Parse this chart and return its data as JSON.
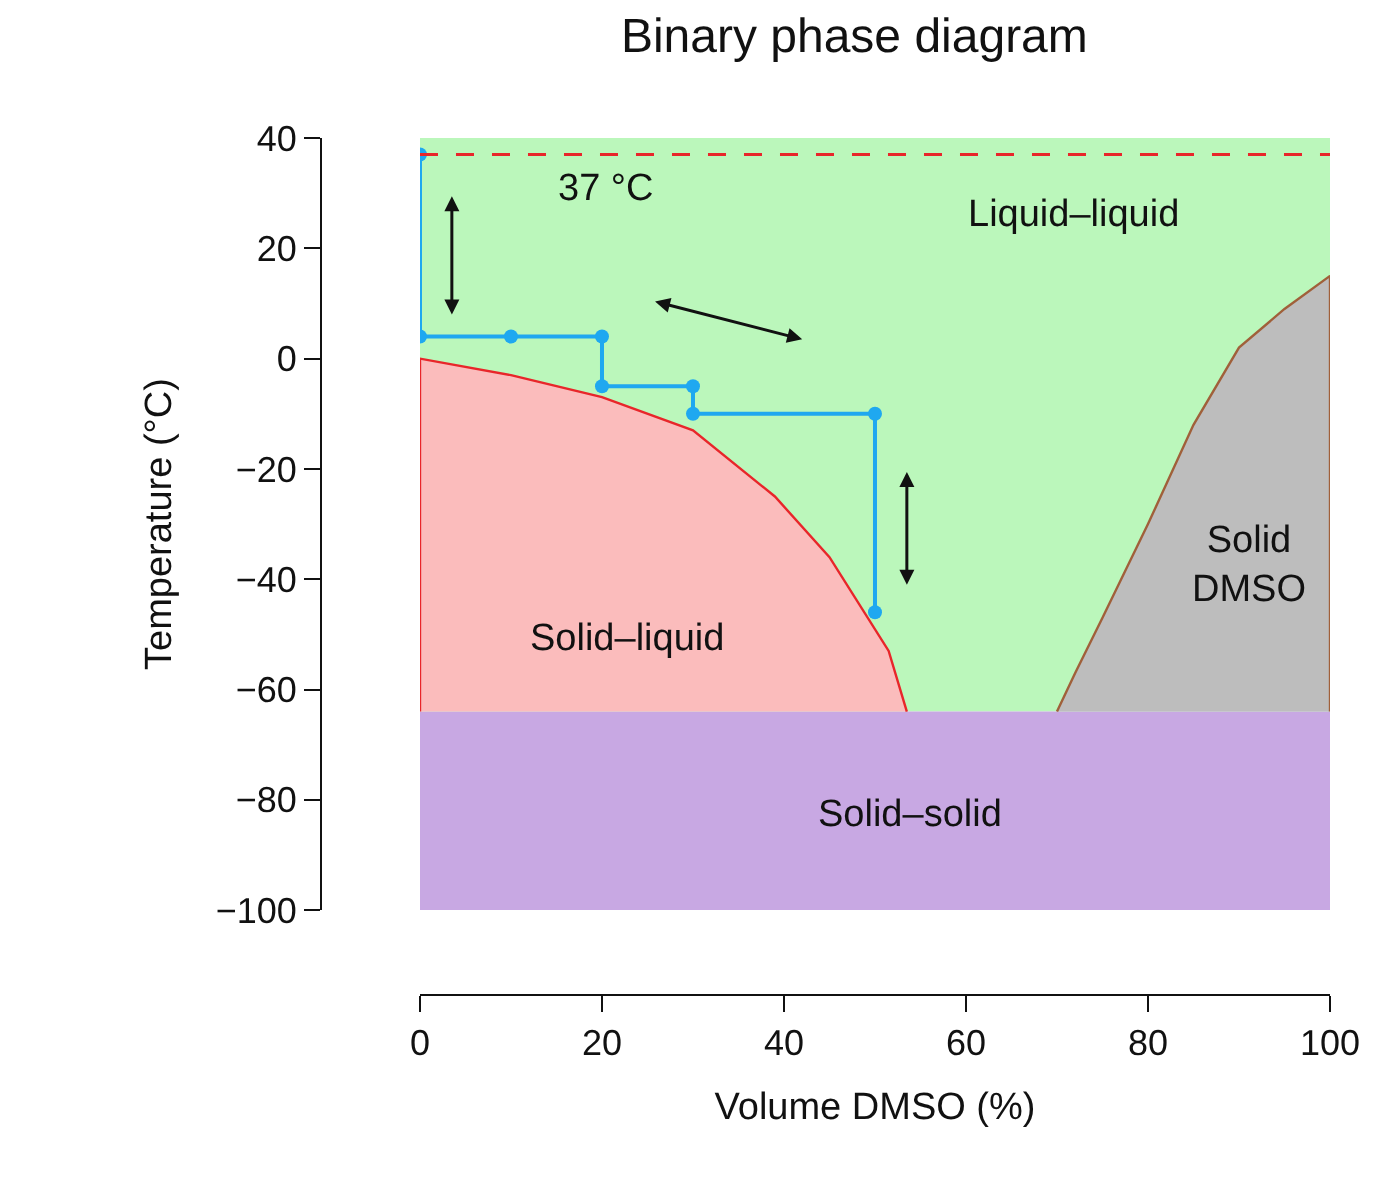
{
  "chart_data": {
    "type": "area",
    "title": "Binary phase diagram",
    "xlabel": "Volume DMSO (%)",
    "ylabel": "Temperature (°C)",
    "xlim": [
      0,
      100
    ],
    "ylim": [
      -100,
      40
    ],
    "xticks": [
      0,
      20,
      40,
      60,
      80,
      100
    ],
    "yticks": [
      -100,
      -80,
      -60,
      -40,
      -20,
      0,
      20,
      40
    ],
    "grid": false,
    "bands": [
      {
        "axis": "y",
        "from": -64,
        "to": 40,
        "color": "#bbf7bb"
      },
      {
        "axis": "y",
        "from": -100,
        "to": -64,
        "color": "#c8a8e3"
      }
    ],
    "series": [
      {
        "color": "#fbbcbc",
        "x": [
          0,
          0,
          10,
          20,
          30,
          39,
          45,
          51.5,
          53.5
        ],
        "values": [
          -64,
          0,
          -3,
          -7,
          -13,
          -25,
          -36,
          -53,
          -64
        ]
      },
      {
        "color": "#bdbdbd",
        "x": [
          70,
          72,
          75,
          80,
          85,
          90,
          95,
          100,
          100
        ],
        "values": [
          -64,
          -57,
          -47,
          -30,
          -12,
          2,
          9,
          15,
          -64
        ]
      },
      {
        "type": "line",
        "color": "#1fa8f0",
        "marker": "circle",
        "x": [
          0,
          0,
          10,
          20,
          20,
          30,
          30,
          50,
          50
        ],
        "values": [
          37,
          4,
          4,
          4,
          -5,
          -5,
          -10,
          -10,
          -46
        ]
      }
    ],
    "ref_lines": [
      {
        "axis": "y",
        "value": 37,
        "label": "37 °C",
        "color": "#e8262a",
        "line_style": "dashed"
      }
    ],
    "annotations": [
      "Liquid–liquid",
      "Solid–liquid",
      "Solid DMSO",
      "Solid–solid"
    ]
  }
}
